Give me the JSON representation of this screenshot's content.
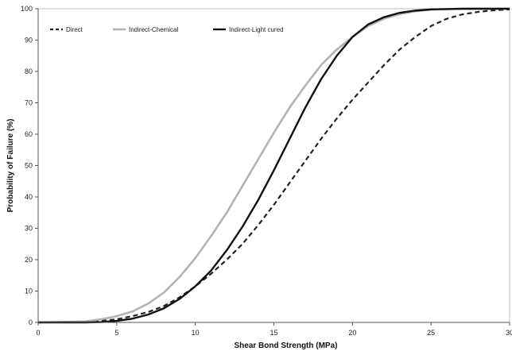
{
  "chart_data": {
    "type": "line",
    "title": "",
    "xlabel": "Shear Bond Strength (MPa)",
    "ylabel": "Probability of Failure (%)",
    "xlim": [
      0,
      30
    ],
    "ylim": [
      0,
      100
    ],
    "xticks": [
      "0",
      "5",
      "10",
      "15",
      "20",
      "25",
      "30"
    ],
    "yticks": [
      "0",
      "10",
      "20",
      "30",
      "40",
      "50",
      "60",
      "70",
      "80",
      "90",
      "100"
    ],
    "grid": false,
    "legend_position": "top-left",
    "series": [
      {
        "name": "Direct",
        "color": "#222222",
        "style": "dashed",
        "x": [
          0,
          3,
          4,
          5,
          6,
          7,
          8,
          9,
          10,
          11,
          12,
          13,
          14,
          15,
          16,
          17,
          18,
          19,
          20,
          21,
          22,
          23,
          24,
          25,
          26,
          27,
          28,
          29,
          30
        ],
        "y": [
          0,
          0.2,
          0.5,
          1,
          2,
          3.3,
          5.2,
          8,
          11.5,
          15.5,
          20,
          25,
          31,
          37.5,
          44.5,
          51.5,
          58.5,
          65,
          71,
          76.5,
          82,
          87,
          91,
          94.5,
          96.8,
          98.2,
          99,
          99.5,
          99.8
        ]
      },
      {
        "name": "Indirect-Chemical",
        "color": "#b3b3b3",
        "style": "solid",
        "x": [
          0,
          3,
          4,
          5,
          6,
          7,
          8,
          9,
          10,
          11,
          12,
          13,
          14,
          15,
          16,
          17,
          18,
          19,
          20,
          21,
          22,
          23,
          24,
          25,
          26,
          27,
          28,
          29,
          30
        ],
        "y": [
          0,
          0.3,
          1,
          2,
          3.5,
          6,
          9.5,
          14.5,
          20.5,
          27.5,
          35,
          43.5,
          52,
          60.5,
          68.5,
          75.5,
          82,
          87,
          91,
          94.5,
          96.8,
          98.3,
          99.2,
          99.7,
          99.9,
          100,
          100,
          100,
          100
        ]
      },
      {
        "name": "Indirect-Light cured",
        "color": "#111111",
        "style": "solid",
        "x": [
          0,
          3,
          4,
          5,
          6,
          7,
          8,
          9,
          10,
          11,
          12,
          13,
          14,
          15,
          16,
          17,
          18,
          19,
          20,
          21,
          22,
          23,
          24,
          25,
          26,
          27,
          28,
          29,
          30
        ],
        "y": [
          0,
          0,
          0.1,
          0.5,
          1.2,
          2.5,
          4.5,
          7.5,
          11.5,
          16.5,
          23,
          30.5,
          39,
          48.5,
          58.5,
          68.5,
          77.5,
          85,
          91,
          95,
          97.3,
          98.7,
          99.4,
          99.8,
          99.9,
          100,
          100,
          100,
          100
        ]
      }
    ]
  }
}
